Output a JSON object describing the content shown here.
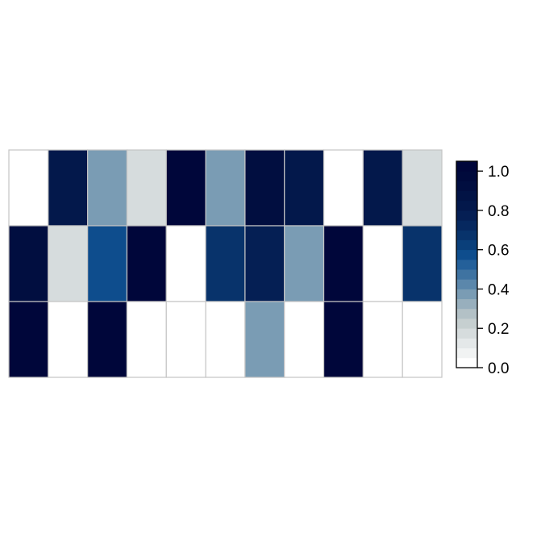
{
  "chart_data": {
    "type": "heatmap",
    "rows": 3,
    "cols": 11,
    "values": [
      [
        0.0,
        0.85,
        0.35,
        0.15,
        1.0,
        0.35,
        0.95,
        0.85,
        0.0,
        0.85,
        0.15
      ],
      [
        0.95,
        0.15,
        0.55,
        1.0,
        0.0,
        0.65,
        0.75,
        0.35,
        1.0,
        0.0,
        0.65
      ],
      [
        1.0,
        0.0,
        1.0,
        0.0,
        0.0,
        0.0,
        0.35,
        0.0,
        1.0,
        0.0,
        0.0
      ]
    ],
    "zlim": [
      0,
      1.05
    ],
    "colorbar": {
      "position": "right",
      "ticks": [
        0.0,
        0.2,
        0.4,
        0.6,
        0.8,
        1.0
      ],
      "tick_labels": [
        "0.0",
        "0.2",
        "0.4",
        "0.6",
        "0.8",
        "1.0"
      ],
      "bins": 21
    },
    "palette": [
      "#ffffff",
      "#f1f3f3",
      "#e4e8e9",
      "#d6dcdd",
      "#c6cfd0",
      "#b3c1c6",
      "#98afbd",
      "#7a9cb4",
      "#5b87ab",
      "#3f73a1",
      "#24609a",
      "#0e4d8d",
      "#0a3f7a",
      "#08336b",
      "#06285f",
      "#051f54",
      "#03184b",
      "#021345",
      "#010e40",
      "#000a3c",
      "#00063a"
    ],
    "cell_border_color": "#c4c4c4",
    "grid": true
  }
}
